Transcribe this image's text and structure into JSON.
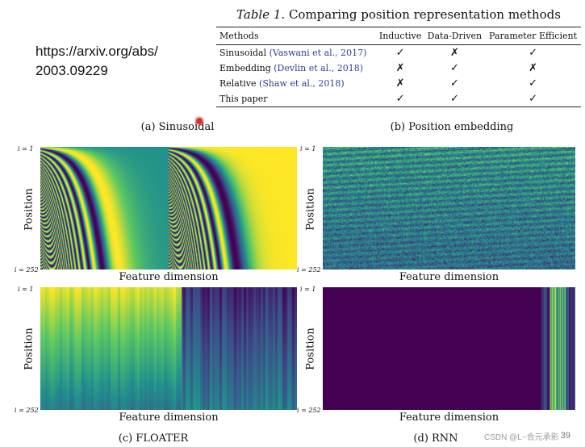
{
  "url": {
    "line1": "https://arxiv.org/abs/",
    "line2": "2003.09229"
  },
  "table": {
    "label": "Table 1.",
    "caption": "Comparing position representation methods",
    "headers": [
      "Methods",
      "Inductive",
      "Data-Driven",
      "Parameter Efficient"
    ],
    "rows": [
      {
        "method": "Sinusoidal",
        "cite": "(Vaswani et al., 2017)",
        "marks": [
          "✓",
          "✗",
          "✓"
        ]
      },
      {
        "method": "Embedding",
        "cite": "(Devlin et al., 2018)",
        "marks": [
          "✗",
          "✓",
          "✗"
        ]
      },
      {
        "method": "Relative",
        "cite": "(Shaw et al., 2018)",
        "marks": [
          "✗",
          "✓",
          "✓"
        ]
      },
      {
        "method": "This paper",
        "cite": "",
        "marks": [
          "✓",
          "✓",
          "✓"
        ]
      }
    ]
  },
  "top_captions": {
    "a": "(a) Sinusoidal",
    "b": "(b) Position embedding"
  },
  "plots": [
    {
      "id": "sinusoidal",
      "ylabel": "Position",
      "xlabel": "Feature dimension",
      "y_top": "i = 1",
      "y_bottom": "i = 252"
    },
    {
      "id": "embedding",
      "ylabel": "Position",
      "xlabel": "Feature dimension",
      "y_top": "i = 1",
      "y_bottom": "i = 252"
    },
    {
      "id": "floater",
      "ylabel": "Position",
      "xlabel": "Feature dimension",
      "y_top": "i = 1",
      "y_bottom": "i = 252",
      "caption": "(c) FLOATER"
    },
    {
      "id": "rnn",
      "ylabel": "Position",
      "xlabel": "Feature dimension",
      "y_top": "i = 1",
      "y_bottom": "i = 252",
      "caption": "(d) RNN"
    }
  ],
  "colors": {
    "citation": "#2b3f9c",
    "viridis_low": "#440154",
    "viridis_high": "#fde725",
    "marker": "#d9322b"
  },
  "page_number": "39",
  "watermark": "CSDN @L~合元承影"
}
